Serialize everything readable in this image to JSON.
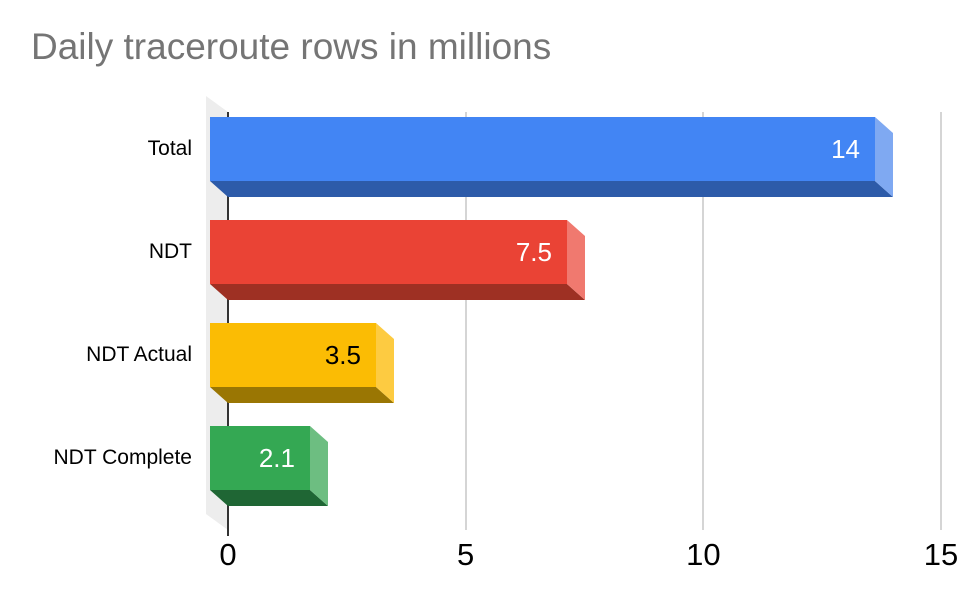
{
  "title": "Daily traceroute rows in millions",
  "chart_data": {
    "type": "bar",
    "orientation": "horizontal",
    "style": "3d",
    "title": "Daily traceroute rows in millions",
    "categories": [
      "Total",
      "NDT",
      "NDT Actual",
      "NDT Complete"
    ],
    "values": [
      14,
      7.5,
      3.5,
      2.1
    ],
    "value_labels": [
      "14",
      "7.5",
      "3.5",
      "2.1"
    ],
    "xlabel": "",
    "ylabel": "",
    "xlim": [
      0,
      15
    ],
    "x_ticks": [
      0,
      5,
      10,
      15
    ],
    "x_tick_labels": [
      "0",
      "5",
      "10",
      "15"
    ],
    "grid": true,
    "legend_position": "none",
    "series_colors": [
      {
        "name": "blue",
        "face": "#4285F4",
        "bottom": "#2D5BA9",
        "side": "#7FA9F2",
        "label_color": "#FFFFFF"
      },
      {
        "name": "red",
        "face": "#EA4335",
        "bottom": "#9E3023",
        "side": "#F0796F",
        "label_color": "#FFFFFF"
      },
      {
        "name": "yellow",
        "face": "#FBBC04",
        "bottom": "#9A7603",
        "side": "#FDCB41",
        "label_color": "#000000"
      },
      {
        "name": "green",
        "face": "#34A853",
        "bottom": "#1F6634",
        "side": "#6DBE81",
        "label_color": "#FFFFFF"
      }
    ],
    "colors": {
      "title": "#757575",
      "axis_line": "#333333",
      "gridline": "#D5D5D5",
      "wall": "#EDEDED",
      "tick_label": "#000000",
      "category_label": "#000000",
      "background": "#FFFFFF"
    }
  }
}
